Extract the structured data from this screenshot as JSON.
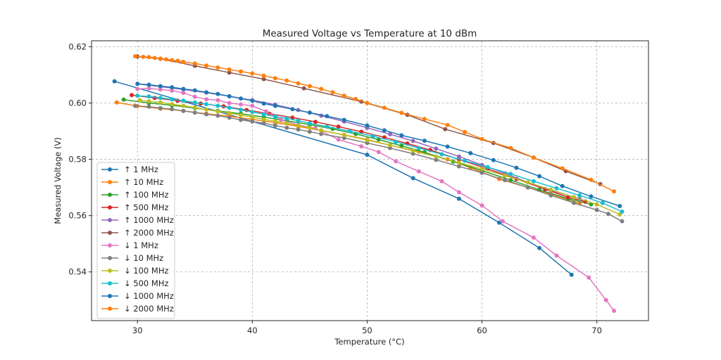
{
  "chart_data": {
    "type": "line",
    "title": "Measured Voltage vs Temperature at 10 dBm",
    "xlabel": "Temperature (°C)",
    "ylabel": "Measured Voltage (V)",
    "xlim": [
      26.0,
      74.5
    ],
    "ylim": [
      0.5227,
      0.6221
    ],
    "xticks": [
      30,
      40,
      50,
      60,
      70
    ],
    "xtick_labels": [
      "30",
      "40",
      "50",
      "60",
      "70"
    ],
    "yticks": [
      0.54,
      0.56,
      0.58,
      0.6,
      0.62
    ],
    "ytick_labels": [
      "0.54",
      "0.56",
      "0.58",
      "0.60",
      "0.62"
    ],
    "grid": true,
    "legend_position": "lower-left",
    "series": [
      {
        "name": "↑ 1 MHz",
        "color": "#1f77b4",
        "x": [
          28.0,
          50.0,
          54.0,
          58.0,
          61.5,
          65.0,
          67.8
        ],
        "y": [
          0.6077,
          0.5816,
          0.5733,
          0.566,
          0.5575,
          0.5485,
          0.539
        ]
      },
      {
        "name": "↑ 10 MHz",
        "color": "#ff7f0e",
        "x": [
          28.2,
          30.0,
          32.0,
          34.0,
          36.0,
          38.0,
          40.0,
          42.0,
          44.0,
          46.0,
          48.0,
          50.0,
          52.0,
          54.5,
          57.0,
          59.0,
          61.5,
          64.0,
          66.0,
          68.5
        ],
        "y": [
          0.6002,
          0.5989,
          0.598,
          0.5972,
          0.5962,
          0.5953,
          0.5942,
          0.593,
          0.5917,
          0.5902,
          0.5887,
          0.587,
          0.585,
          0.5827,
          0.58,
          0.577,
          0.573,
          0.57,
          0.5676,
          0.5643
        ]
      },
      {
        "name": "↑ 100 MHz",
        "color": "#2ca02c",
        "x": [
          28.8,
          31.0,
          33.0,
          35.0,
          37.0,
          39.0,
          41.0,
          43.0,
          45.0,
          47.0,
          49.0,
          51.0,
          53.0,
          55.0,
          57.5,
          60.0,
          62.5,
          65.0,
          67.5,
          69.5
        ],
        "y": [
          0.6012,
          0.6,
          0.5992,
          0.5982,
          0.5972,
          0.5962,
          0.595,
          0.5937,
          0.5923,
          0.5908,
          0.589,
          0.587,
          0.5848,
          0.5825,
          0.5792,
          0.576,
          0.5726,
          0.5692,
          0.566,
          0.564
        ]
      },
      {
        "name": "↑ 500 MHz",
        "color": "#d62728",
        "x": [
          29.5,
          31.5,
          33.5,
          35.5,
          37.5,
          39.5,
          41.5,
          43.5,
          45.5,
          47.5,
          49.5,
          51.5,
          53.5,
          55.5,
          58.0,
          60.5,
          63.0,
          65.5,
          67.5,
          69.0
        ],
        "y": [
          0.6028,
          0.6018,
          0.6008,
          0.5998,
          0.5988,
          0.5975,
          0.5962,
          0.5948,
          0.5933,
          0.5916,
          0.5898,
          0.5878,
          0.5856,
          0.5833,
          0.58,
          0.5766,
          0.573,
          0.5694,
          0.5665,
          0.565
        ]
      },
      {
        "name": "↑ 1000 MHz",
        "color": "#9467bd",
        "x": [
          30.0,
          32.0,
          34.0,
          36.0,
          38.0,
          40.0,
          42.0,
          44.0,
          46.0,
          48.0,
          50.0,
          52.0,
          54.0,
          56.0,
          58.0,
          60.0,
          62.0,
          64.0,
          66.0,
          68.5
        ],
        "y": [
          0.6068,
          0.6058,
          0.6048,
          0.6037,
          0.6024,
          0.601,
          0.5994,
          0.5975,
          0.5955,
          0.5934,
          0.5912,
          0.5889,
          0.5865,
          0.5838,
          0.581,
          0.578,
          0.575,
          0.5718,
          0.569,
          0.566
        ]
      },
      {
        "name": "↑ 2000 MHz",
        "color": "#8c564b",
        "x": [
          30.0,
          32.0,
          35.0,
          38.0,
          41.0,
          44.5,
          49.5,
          53.5,
          56.8,
          61.0,
          64.5,
          67.3,
          70.3
        ],
        "y": [
          0.6165,
          0.6157,
          0.6132,
          0.6108,
          0.6085,
          0.6052,
          0.6005,
          0.5958,
          0.5907,
          0.5858,
          0.5806,
          0.5758,
          0.5712
        ]
      },
      {
        "name": "↓ 1 MHz",
        "color": "#e377c2",
        "x": [
          30.0,
          31.0,
          32.0,
          33.0,
          34.0,
          35.0,
          36.0,
          37.0,
          38.0,
          39.0,
          40.0,
          41.2,
          42.5,
          44.0,
          45.5,
          47.5,
          49.5,
          51.0,
          52.5,
          54.5,
          56.5,
          58.0,
          60.0,
          61.8,
          64.5,
          66.5,
          69.3,
          70.8,
          71.5
        ],
        "y": [
          0.605,
          0.6052,
          0.6048,
          0.6044,
          0.6036,
          0.6022,
          0.6013,
          0.601,
          0.6,
          0.5995,
          0.599,
          0.597,
          0.594,
          0.5922,
          0.591,
          0.587,
          0.5846,
          0.5826,
          0.5793,
          0.5757,
          0.5722,
          0.5683,
          0.5636,
          0.558,
          0.5522,
          0.5458,
          0.538,
          0.53,
          0.5262
        ]
      },
      {
        "name": "↓ 10 MHz",
        "color": "#7f7f7f",
        "x": [
          29.8,
          31.0,
          32.0,
          33.0,
          34.0,
          35.0,
          36.0,
          37.0,
          38.0,
          39.0,
          40.0,
          41.0,
          42.0,
          43.0,
          44.0,
          45.0,
          46.0,
          48.0,
          50.0,
          52.0,
          54.0,
          56.0,
          58.0,
          60.0,
          62.0,
          64.0,
          66.0,
          68.0,
          70.0,
          71.0,
          72.2
        ],
        "y": [
          0.599,
          0.5987,
          0.5982,
          0.5978,
          0.5972,
          0.5966,
          0.596,
          0.5955,
          0.5948,
          0.594,
          0.5934,
          0.5928,
          0.592,
          0.5912,
          0.5906,
          0.5898,
          0.589,
          0.5876,
          0.5858,
          0.584,
          0.582,
          0.5798,
          0.5775,
          0.5752,
          0.5726,
          0.57,
          0.5672,
          0.5645,
          0.562,
          0.5606,
          0.558
        ]
      },
      {
        "name": "↓ 100 MHz",
        "color": "#bcbd22",
        "x": [
          30.2,
          31.0,
          32.0,
          33.0,
          34.0,
          35.0,
          36.0,
          37.0,
          38.0,
          39.0,
          40.0,
          41.0,
          42.0,
          43.0,
          44.0,
          45.0,
          46.0,
          48.0,
          50.0,
          52.0,
          54.0,
          56.0,
          58.0,
          60.0,
          62.0,
          64.0,
          66.0,
          68.0,
          70.0,
          72.0
        ],
        "y": [
          0.601,
          0.6006,
          0.6002,
          0.5996,
          0.599,
          0.5984,
          0.5977,
          0.597,
          0.5964,
          0.5957,
          0.595,
          0.5942,
          0.5935,
          0.5928,
          0.592,
          0.5912,
          0.5903,
          0.5886,
          0.5868,
          0.585,
          0.583,
          0.581,
          0.5788,
          0.5766,
          0.5742,
          0.5718,
          0.5692,
          0.5666,
          0.564,
          0.5604
        ]
      },
      {
        "name": "↓ 500 MHz",
        "color": "#17becf",
        "x": [
          30.0,
          31.0,
          32.0,
          33.0,
          34.0,
          35.0,
          36.0,
          37.0,
          38.0,
          39.0,
          40.0,
          41.0,
          42.0,
          43.0,
          44.0,
          45.0,
          46.5,
          48.5,
          50.5,
          52.5,
          54.5,
          56.5,
          58.5,
          60.5,
          62.5,
          64.5,
          66.5,
          68.5,
          70.5,
          72.2
        ],
        "y": [
          0.6026,
          0.6023,
          0.6018,
          0.6013,
          0.6008,
          0.6002,
          0.5996,
          0.599,
          0.5983,
          0.5976,
          0.5968,
          0.596,
          0.5952,
          0.5945,
          0.5937,
          0.5928,
          0.5916,
          0.59,
          0.5882,
          0.5862,
          0.584,
          0.5818,
          0.5795,
          0.5772,
          0.5748,
          0.5722,
          0.5697,
          0.5672,
          0.5645,
          0.5614
        ]
      },
      {
        "name": "↓ 1000 MHz",
        "color": "#1f77b4",
        "x": [
          30.0,
          31.0,
          32.0,
          33.0,
          34.0,
          35.0,
          36.0,
          37.0,
          38.0,
          39.0,
          40.0,
          41.0,
          42.0,
          43.5,
          45.0,
          46.5,
          48.0,
          50.0,
          51.5,
          53.0,
          55.0,
          57.0,
          59.0,
          61.0,
          63.0,
          65.0,
          67.0,
          69.5,
          72.0
        ],
        "y": [
          0.6068,
          0.6065,
          0.606,
          0.6056,
          0.605,
          0.6045,
          0.6038,
          0.6032,
          0.6024,
          0.6016,
          0.6008,
          0.5998,
          0.599,
          0.5978,
          0.5966,
          0.5953,
          0.594,
          0.592,
          0.5903,
          0.5885,
          0.5866,
          0.5845,
          0.5822,
          0.5797,
          0.577,
          0.574,
          0.5705,
          0.5668,
          0.5634
        ]
      },
      {
        "name": "↓ 2000 MHz",
        "color": "#ff7f0e",
        "x": [
          29.8,
          30.5,
          31.0,
          31.5,
          32.0,
          32.5,
          33.0,
          33.5,
          34.0,
          35.0,
          36.0,
          37.0,
          38.0,
          39.0,
          40.0,
          41.0,
          42.0,
          43.0,
          44.0,
          45.0,
          46.0,
          47.0,
          48.0,
          49.0,
          50.0,
          51.5,
          53.0,
          55.0,
          57.0,
          58.5,
          60.0,
          62.5,
          64.5,
          67.0,
          69.5,
          71.5
        ],
        "y": [
          0.6166,
          0.6164,
          0.6163,
          0.616,
          0.6158,
          0.6155,
          0.6152,
          0.615,
          0.6146,
          0.614,
          0.6133,
          0.6126,
          0.6119,
          0.6112,
          0.6105,
          0.6097,
          0.6088,
          0.608,
          0.607,
          0.606,
          0.605,
          0.6038,
          0.6026,
          0.6014,
          0.6,
          0.5983,
          0.5965,
          0.5943,
          0.5922,
          0.5897,
          0.5872,
          0.584,
          0.5806,
          0.5768,
          0.5727,
          0.5686
        ]
      }
    ]
  }
}
